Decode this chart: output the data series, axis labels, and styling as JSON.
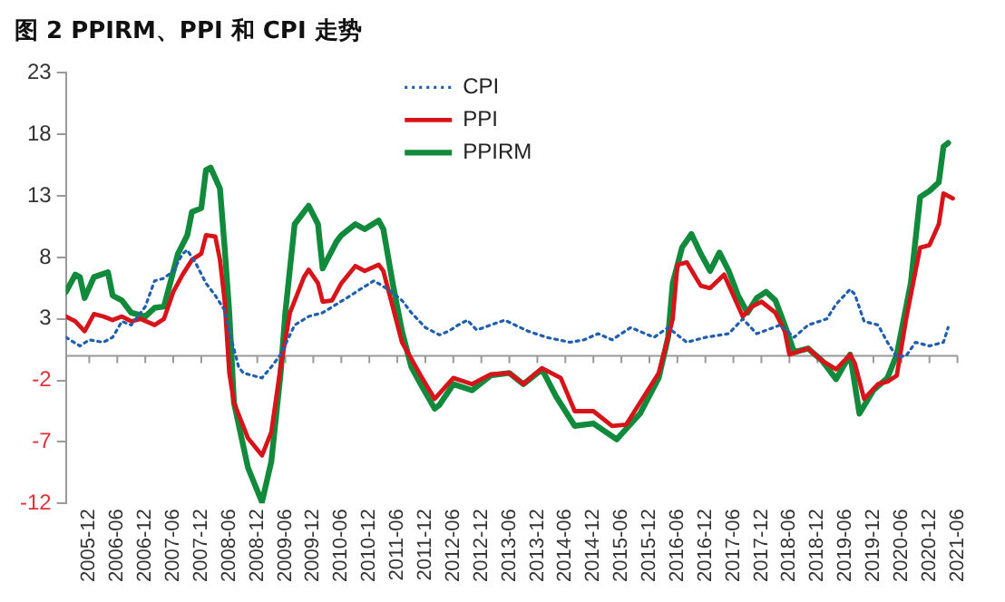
{
  "chart_data": {
    "type": "line",
    "title": "图 2  PPIRM、PPI 和 CPI 走势",
    "xlim": [
      "2005-07",
      "2021-06"
    ],
    "xticks": [
      "2005-12",
      "2006-06",
      "2006-12",
      "2007-06",
      "2007-12",
      "2008-06",
      "2008-12",
      "2009-06",
      "2009-12",
      "2010-06",
      "2010-12",
      "2011-06",
      "2011-12",
      "2012-06",
      "2012-12",
      "2013-06",
      "2013-12",
      "2014-06",
      "2014-12",
      "2015-06",
      "2015-12",
      "2016-06",
      "2016-12",
      "2017-06",
      "2017-12",
      "2018-06",
      "2018-12",
      "2019-06",
      "2019-12",
      "2020-06",
      "2020-12",
      "2021-06"
    ],
    "ylim": [
      -12,
      23
    ],
    "yticks": [
      -12,
      -7,
      -2,
      3,
      8,
      13,
      18,
      23
    ],
    "grid": false,
    "legend": "top",
    "marker": "none",
    "series": [
      {
        "name": "CPI",
        "color": "#1f5fae",
        "line_style": "dotted",
        "x": [
          "2005-07",
          "2005-10",
          "2005-12",
          "2006-03",
          "2006-05",
          "2006-07",
          "2006-09",
          "2006-12",
          "2007-02",
          "2007-04",
          "2007-06",
          "2007-08",
          "2007-09",
          "2007-11",
          "2008-01",
          "2008-03",
          "2008-05",
          "2008-06",
          "2008-08",
          "2008-09",
          "2008-11",
          "2009-01",
          "2009-03",
          "2009-05",
          "2009-08",
          "2009-11",
          "2010-02",
          "2010-05",
          "2010-08",
          "2010-10",
          "2011-01",
          "2011-04",
          "2011-07",
          "2011-09",
          "2011-12",
          "2012-03",
          "2012-05",
          "2012-07",
          "2012-09",
          "2012-11",
          "2013-05",
          "2013-10",
          "2014-02",
          "2014-07",
          "2014-10",
          "2015-01",
          "2015-04",
          "2015-08",
          "2016-01",
          "2016-04",
          "2016-08",
          "2016-12",
          "2017-05",
          "2017-08",
          "2017-11",
          "2018-04",
          "2018-07",
          "2018-10",
          "2019-02",
          "2019-04",
          "2019-07",
          "2019-08",
          "2019-10",
          "2020-01",
          "2020-03",
          "2020-05",
          "2020-07",
          "2020-09",
          "2020-12",
          "2021-03",
          "2021-04"
        ],
        "values": [
          1.5,
          0.8,
          1.3,
          1.1,
          1.5,
          2.8,
          2.5,
          4.0,
          6.1,
          6.3,
          6.9,
          8.3,
          8.6,
          7.4,
          5.9,
          4.9,
          3.7,
          2.0,
          -0.9,
          -1.4,
          -1.6,
          -1.8,
          -0.9,
          0.1,
          2.5,
          3.2,
          3.5,
          4.2,
          4.9,
          5.4,
          6.1,
          5.4,
          4.5,
          3.5,
          2.3,
          1.7,
          2.0,
          2.5,
          2.9,
          2.1,
          2.9,
          2.0,
          1.5,
          1.1,
          1.3,
          1.8,
          1.3,
          2.3,
          1.5,
          2.3,
          1.1,
          1.5,
          1.8,
          3.0,
          1.8,
          2.5,
          1.5,
          2.5,
          3.0,
          4.2,
          5.4,
          5.0,
          2.8,
          2.5,
          1.1,
          -0.1,
          0.0,
          1.1,
          0.8,
          1.1,
          2.3
        ]
      },
      {
        "name": "PPI",
        "color": "#d7141a",
        "line_style": "solid",
        "x": [
          "2005-07",
          "2005-09",
          "2005-11",
          "2006-01",
          "2006-03",
          "2006-05",
          "2006-07",
          "2006-09",
          "2006-11",
          "2007-02",
          "2007-04",
          "2007-06",
          "2007-08",
          "2007-10",
          "2007-12",
          "2008-01",
          "2008-03",
          "2008-04",
          "2008-05",
          "2008-06",
          "2008-07",
          "2008-10",
          "2009-01",
          "2009-03",
          "2009-05",
          "2009-07",
          "2009-10",
          "2009-11",
          "2010-01",
          "2010-02",
          "2010-04",
          "2010-06",
          "2010-09",
          "2010-11",
          "2011-02",
          "2011-03",
          "2011-05",
          "2011-07",
          "2011-11",
          "2012-02",
          "2012-06",
          "2012-10",
          "2013-02",
          "2013-06",
          "2013-09",
          "2014-01",
          "2014-05",
          "2014-08",
          "2014-12",
          "2015-04",
          "2015-07",
          "2015-10",
          "2016-02",
          "2016-04",
          "2016-05",
          "2016-06",
          "2016-08",
          "2016-11",
          "2017-01",
          "2017-04",
          "2017-06",
          "2017-08",
          "2017-10",
          "2017-12",
          "2018-03",
          "2018-05",
          "2018-06",
          "2018-10",
          "2019-01",
          "2019-04",
          "2019-07",
          "2019-08",
          "2019-10",
          "2020-01",
          "2020-03",
          "2020-05",
          "2020-07",
          "2020-10",
          "2020-12",
          "2021-02",
          "2021-03",
          "2021-05"
        ],
        "values": [
          3.2,
          2.8,
          2.0,
          3.4,
          3.2,
          2.9,
          3.2,
          2.8,
          3.0,
          2.5,
          3.0,
          5.2,
          6.6,
          7.8,
          8.3,
          9.8,
          9.7,
          7.8,
          4.5,
          -1.4,
          -3.8,
          -6.7,
          -8.1,
          -6.2,
          -0.9,
          3.5,
          6.4,
          7.0,
          5.9,
          4.4,
          4.5,
          5.9,
          7.3,
          6.9,
          7.4,
          6.9,
          4.0,
          1.1,
          -1.6,
          -3.5,
          -1.8,
          -2.3,
          -1.5,
          -1.4,
          -2.3,
          -1.0,
          -1.8,
          -4.5,
          -4.5,
          -5.7,
          -5.6,
          -3.8,
          -1.4,
          1.5,
          3.0,
          7.4,
          7.6,
          5.7,
          5.5,
          6.6,
          4.9,
          3.2,
          4.0,
          4.4,
          3.5,
          2.0,
          0.1,
          0.6,
          -0.4,
          -1.1,
          0.1,
          -0.6,
          -3.5,
          -2.3,
          -2.1,
          -1.6,
          3.0,
          8.8,
          9.0,
          10.7,
          13.2,
          12.8
        ]
      },
      {
        "name": "PPIRM",
        "color": "#128a3c",
        "line_style": "solid",
        "x": [
          "2005-07",
          "2005-09",
          "2005-10",
          "2005-11",
          "2006-01",
          "2006-04",
          "2006-05",
          "2006-07",
          "2006-09",
          "2006-12",
          "2007-02",
          "2007-04",
          "2007-07",
          "2007-09",
          "2007-10",
          "2007-12",
          "2008-01",
          "2008-02",
          "2008-04",
          "2008-05",
          "2008-06",
          "2008-07",
          "2008-10",
          "2009-01",
          "2009-03",
          "2009-05",
          "2009-06",
          "2009-08",
          "2009-10",
          "2009-11",
          "2010-01",
          "2010-02",
          "2010-05",
          "2010-06",
          "2010-09",
          "2010-11",
          "2011-02",
          "2011-03",
          "2011-05",
          "2011-07",
          "2011-09",
          "2011-11",
          "2012-02",
          "2012-03",
          "2012-06",
          "2012-10",
          "2013-02",
          "2013-06",
          "2013-09",
          "2014-01",
          "2014-04",
          "2014-08",
          "2014-12",
          "2015-05",
          "2015-10",
          "2016-02",
          "2016-04",
          "2016-05",
          "2016-07",
          "2016-09",
          "2016-11",
          "2017-01",
          "2017-03",
          "2017-05",
          "2017-07",
          "2017-09",
          "2017-11",
          "2018-01",
          "2018-03",
          "2018-05",
          "2018-07",
          "2018-10",
          "2019-01",
          "2019-04",
          "2019-07",
          "2019-09",
          "2019-12",
          "2020-03",
          "2020-05",
          "2020-08",
          "2020-10",
          "2020-12",
          "2021-02",
          "2021-03",
          "2021-04"
        ],
        "values": [
          5.2,
          6.6,
          6.4,
          4.7,
          6.4,
          6.8,
          4.9,
          4.5,
          3.5,
          3.2,
          3.9,
          4.0,
          8.3,
          9.8,
          11.7,
          12.0,
          15.1,
          15.3,
          13.6,
          8.8,
          3.5,
          -3.8,
          -9.1,
          -11.9,
          -8.6,
          -1.4,
          3.5,
          10.7,
          11.7,
          12.2,
          10.7,
          7.1,
          9.3,
          9.8,
          10.7,
          10.3,
          11.0,
          10.3,
          5.9,
          2.0,
          -0.9,
          -2.3,
          -4.3,
          -4.0,
          -2.3,
          -2.8,
          -1.6,
          -1.4,
          -2.3,
          -1.1,
          -3.3,
          -5.7,
          -5.5,
          -6.8,
          -4.7,
          -1.8,
          1.5,
          5.9,
          8.8,
          9.9,
          8.3,
          6.9,
          8.4,
          6.9,
          4.9,
          3.5,
          4.7,
          5.2,
          4.5,
          2.5,
          0.3,
          0.6,
          -0.4,
          -1.9,
          0.1,
          -4.7,
          -2.8,
          -1.8,
          0.1,
          5.9,
          12.9,
          13.4,
          14.1,
          17.0,
          17.3
        ]
      }
    ]
  }
}
